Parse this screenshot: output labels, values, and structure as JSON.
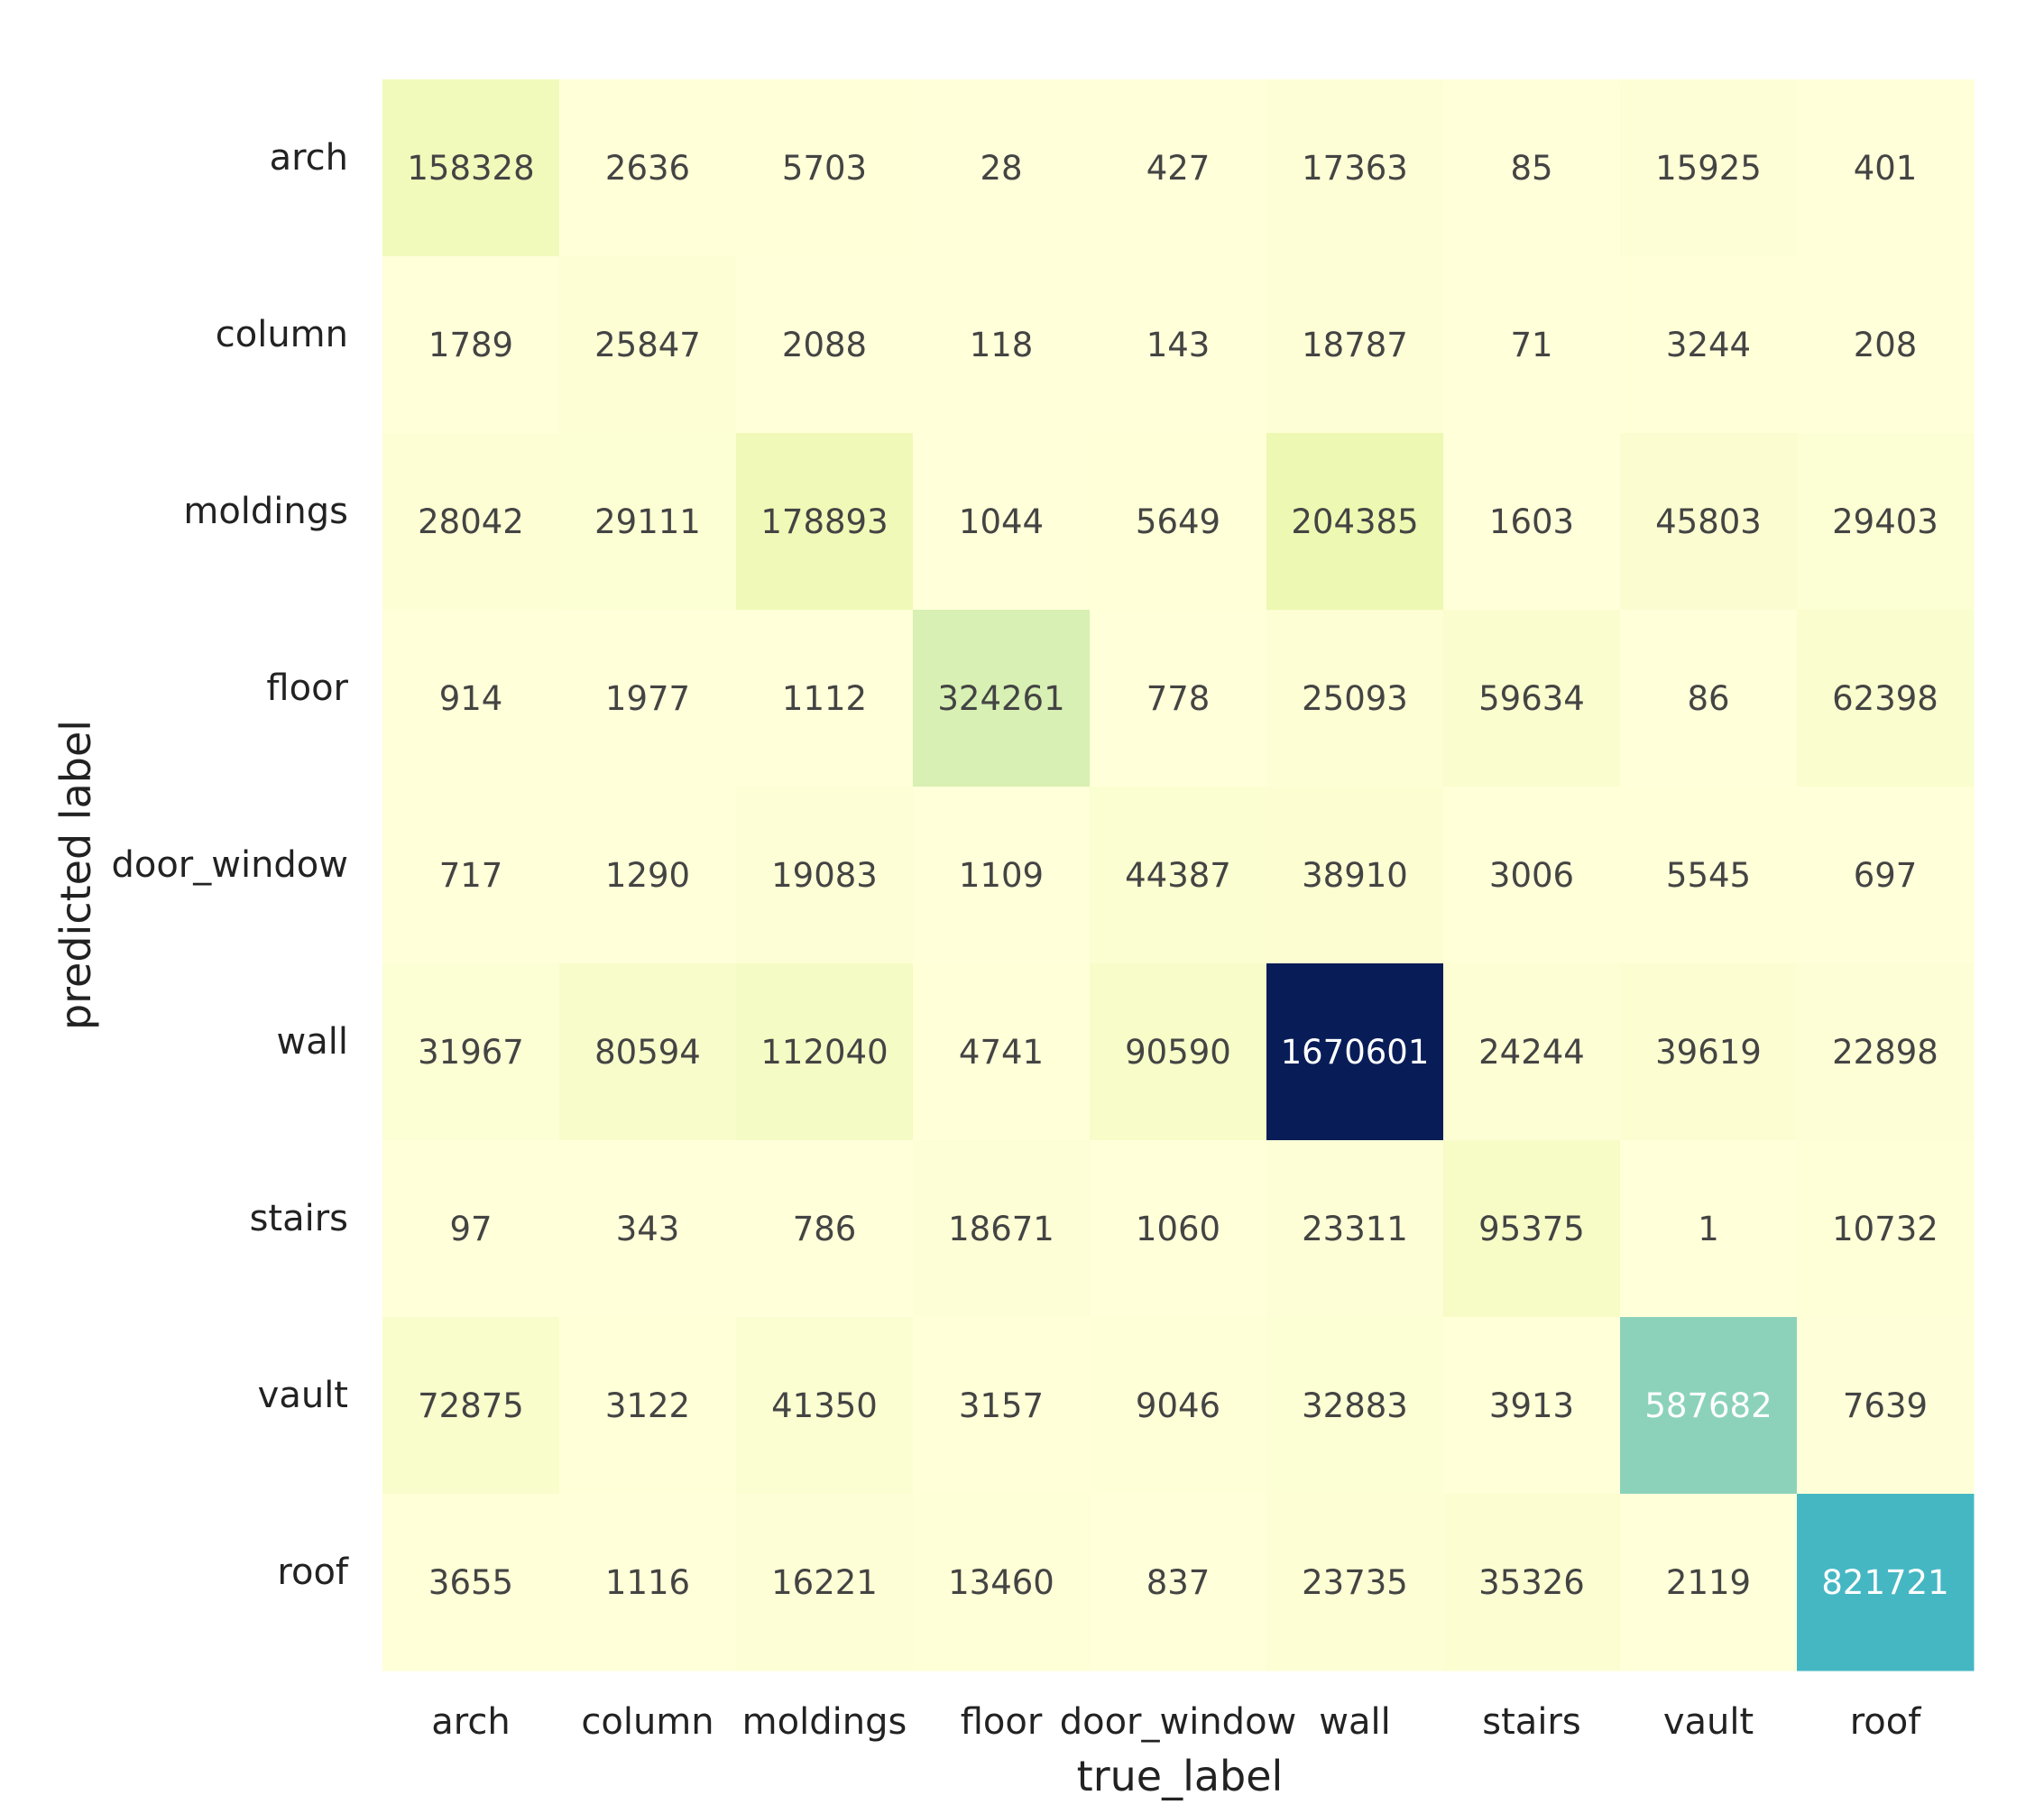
{
  "chart_data": {
    "type": "heatmap",
    "title": "",
    "xlabel": "true_label",
    "ylabel": "predicted label",
    "x_categories": [
      "arch",
      "column",
      "moldings",
      "floor",
      "door_window",
      "wall",
      "stairs",
      "vault",
      "roof"
    ],
    "y_categories": [
      "arch",
      "column",
      "moldings",
      "floor",
      "door_window",
      "wall",
      "stairs",
      "vault",
      "roof"
    ],
    "values": [
      [
        158328,
        2636,
        5703,
        28,
        427,
        17363,
        85,
        15925,
        401
      ],
      [
        1789,
        25847,
        2088,
        118,
        143,
        18787,
        71,
        3244,
        208
      ],
      [
        28042,
        29111,
        178893,
        1044,
        5649,
        204385,
        1603,
        45803,
        29403
      ],
      [
        914,
        1977,
        1112,
        324261,
        778,
        25093,
        59634,
        86,
        62398
      ],
      [
        717,
        1290,
        19083,
        1109,
        44387,
        38910,
        3006,
        5545,
        697
      ],
      [
        31967,
        80594,
        112040,
        4741,
        90590,
        1670601,
        24244,
        39619,
        22898
      ],
      [
        97,
        343,
        786,
        18671,
        1060,
        23311,
        95375,
        1,
        10732
      ],
      [
        72875,
        3122,
        41350,
        3157,
        9046,
        32883,
        3913,
        587682,
        7639
      ],
      [
        3655,
        1116,
        16221,
        13460,
        837,
        23735,
        35326,
        2119,
        821721
      ]
    ],
    "colormap": "YlGnBu",
    "colors": {
      "low": "#ffffd9",
      "high": "#081d58",
      "text_dark": "#444444",
      "text_light": "#ffffff"
    },
    "grid": false,
    "legend": "none"
  }
}
